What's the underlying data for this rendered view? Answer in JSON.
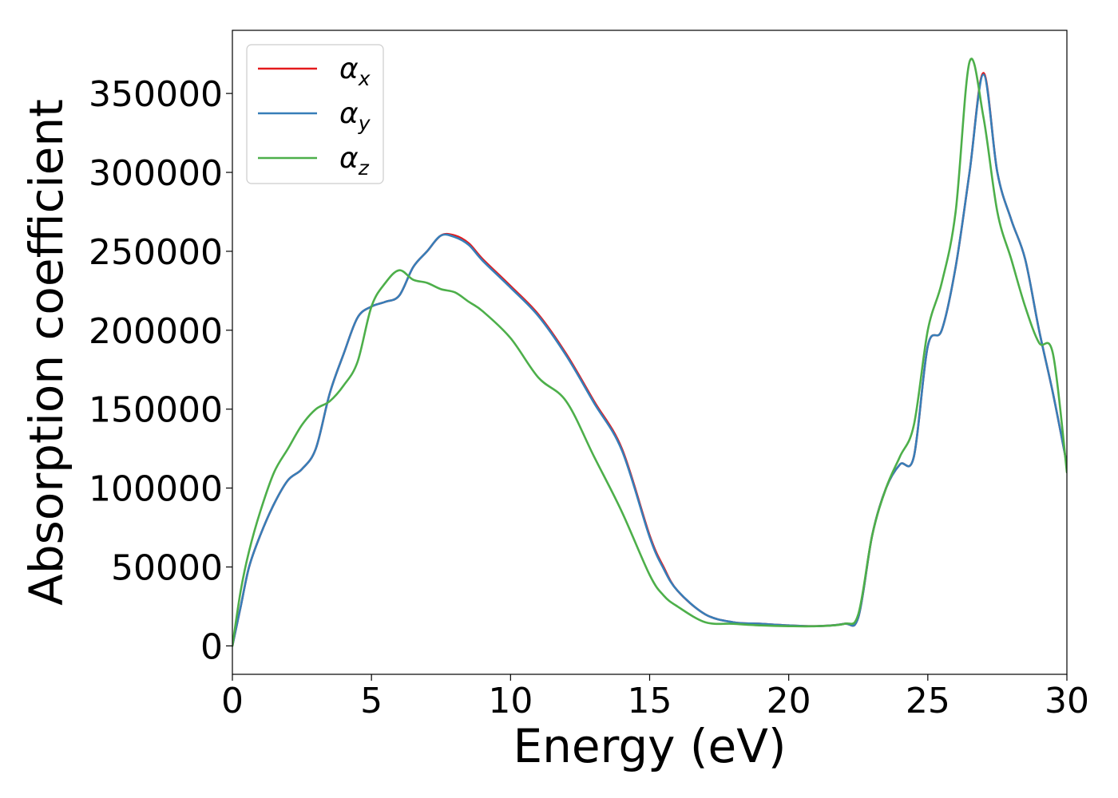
{
  "chart_data": {
    "type": "line",
    "title": "",
    "xlabel": "Energy (eV)",
    "ylabel": "Absorption coefficient",
    "xlim": [
      0,
      30
    ],
    "ylim": [
      -18000,
      390000
    ],
    "xticks": [
      0,
      5,
      10,
      15,
      20,
      25,
      30
    ],
    "yticks": [
      0,
      50000,
      100000,
      150000,
      200000,
      250000,
      300000,
      350000
    ],
    "xtick_labels": [
      "0",
      "5",
      "10",
      "15",
      "20",
      "25",
      "30"
    ],
    "ytick_labels": [
      "0",
      "50000",
      "100000",
      "150000",
      "200000",
      "250000",
      "300000",
      "350000"
    ],
    "grid": false,
    "legend_position": "top-left",
    "series": [
      {
        "name": "αx",
        "symbol": "α",
        "subscript": "x",
        "color": "#e41a1c",
        "x": [
          0,
          0.3,
          0.6,
          1,
          1.5,
          2,
          2.5,
          3,
          3.5,
          4,
          4.5,
          5,
          5.5,
          6,
          6.5,
          7,
          7.5,
          8,
          8.5,
          9,
          10,
          11,
          12,
          13,
          14,
          15,
          15.5,
          16,
          17,
          18,
          19,
          20,
          21,
          22,
          22.5,
          23,
          23.5,
          24,
          24.5,
          25,
          25.5,
          26,
          26.5,
          27,
          27.5,
          28,
          28.5,
          29,
          29.5,
          30
        ],
        "y": [
          0,
          25000,
          50000,
          70000,
          90000,
          105000,
          112000,
          125000,
          160000,
          185000,
          208000,
          215000,
          218000,
          222000,
          240000,
          250000,
          260000,
          260000,
          255000,
          245000,
          228000,
          210000,
          185000,
          155000,
          125000,
          70000,
          50000,
          35000,
          20000,
          15000,
          14000,
          13000,
          12500,
          14000,
          18000,
          70000,
          100000,
          115000,
          120000,
          190000,
          200000,
          240000,
          300000,
          363000,
          300000,
          270000,
          245000,
          200000,
          160000,
          115000
        ]
      },
      {
        "name": "αy",
        "symbol": "α",
        "subscript": "y",
        "color": "#377eb8",
        "x": [
          0,
          0.3,
          0.6,
          1,
          1.5,
          2,
          2.5,
          3,
          3.5,
          4,
          4.5,
          5,
          5.5,
          6,
          6.5,
          7,
          7.5,
          8,
          8.5,
          9,
          10,
          11,
          12,
          13,
          14,
          15,
          15.5,
          16,
          17,
          18,
          19,
          20,
          21,
          22,
          22.5,
          23,
          23.5,
          24,
          24.5,
          25,
          25.5,
          26,
          26.5,
          27,
          27.5,
          28,
          28.5,
          29,
          29.5,
          30
        ],
        "y": [
          0,
          25000,
          50000,
          70000,
          90000,
          105000,
          112000,
          125000,
          160000,
          185000,
          208000,
          215000,
          218000,
          222000,
          240000,
          250000,
          260000,
          259000,
          254000,
          244000,
          227000,
          209000,
          184000,
          154000,
          124000,
          69000,
          49000,
          35000,
          20000,
          15000,
          14000,
          13000,
          12500,
          14000,
          18000,
          70000,
          100000,
          115000,
          120000,
          190000,
          200000,
          240000,
          300000,
          362000,
          300000,
          270000,
          245000,
          200000,
          160000,
          115000
        ]
      },
      {
        "name": "αz",
        "symbol": "α",
        "subscript": "z",
        "color": "#4daf4a",
        "x": [
          0,
          0.3,
          0.6,
          1,
          1.5,
          2,
          2.5,
          3,
          3.5,
          4,
          4.5,
          5,
          5.5,
          6,
          6.5,
          7,
          7.5,
          8,
          8.5,
          9,
          10,
          11,
          12,
          13,
          14,
          15,
          15.5,
          16,
          17,
          18,
          19,
          20,
          21,
          22,
          22.5,
          23,
          23.5,
          24,
          24.5,
          25,
          25.5,
          26,
          26.5,
          27,
          27.5,
          28,
          28.5,
          29,
          29.5,
          30
        ],
        "y": [
          0,
          35000,
          60000,
          85000,
          110000,
          125000,
          140000,
          150000,
          155000,
          165000,
          180000,
          215000,
          230000,
          238000,
          232000,
          230000,
          226000,
          224000,
          218000,
          212000,
          195000,
          170000,
          155000,
          120000,
          85000,
          45000,
          32000,
          25000,
          15000,
          14000,
          13000,
          12500,
          12500,
          14000,
          20000,
          70000,
          100000,
          120000,
          140000,
          200000,
          230000,
          275000,
          370000,
          335000,
          275000,
          245000,
          215000,
          192000,
          185000,
          110000
        ]
      }
    ]
  }
}
